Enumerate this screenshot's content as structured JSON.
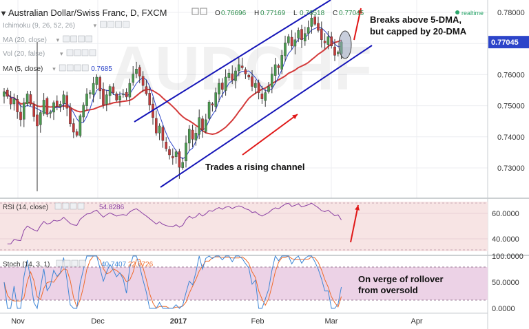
{
  "header": {
    "symbol": "Australian Dollar/Swiss Franc, D, FXCM",
    "ohlc": [
      {
        "key": "O",
        "value": "0.76696"
      },
      {
        "key": "H",
        "value": "0.77169"
      },
      {
        "key": "L",
        "value": "0.76518"
      },
      {
        "key": "C",
        "value": "0.77045"
      }
    ],
    "realtime": "realtime",
    "indicators": [
      {
        "label": "Ichimoku (9, 26, 52, 26)",
        "value": ""
      },
      {
        "label": "MA (20, close)",
        "value": ""
      },
      {
        "label": "Vol (20, false)",
        "value": ""
      },
      {
        "label": "MA (5, close)",
        "value": "0.7685"
      }
    ]
  },
  "annotations": {
    "breakout": [
      "Breaks above 5-DMA,",
      "but capped by 20-DMA"
    ],
    "channel": "Trades a rising channel",
    "rollover": [
      "On verge of rollover",
      "from oversold"
    ]
  },
  "colors": {
    "up": "#4a9a4f",
    "down": "#c23a3a",
    "ma20": "#d43a3a",
    "ma5": "#2c44c9",
    "channel": "#1515b8",
    "arrow": "#e01818",
    "rsi": "#8a3fa3",
    "stoch_k": "#3d86d6",
    "stoch_d": "#ee6a2a",
    "rsi_bg": "#f7e4e4",
    "stoch_bg": "#ecd2e6",
    "price_badge": "#2c44c9"
  },
  "chart_data": [
    {
      "type": "candlestick",
      "title": "Australian Dollar/Swiss Franc, D, FXCM",
      "ylim": [
        0.72,
        0.785
      ],
      "y_ticks": [
        "0.78000",
        "0.77000",
        "0.76000",
        "0.75000",
        "0.74000",
        "0.73000"
      ],
      "current_price": "0.77045",
      "x_ticks": [
        "Nov",
        "Dec",
        "2017",
        "Feb",
        "Mar",
        "Apr"
      ],
      "series": [
        {
          "name": "MA (20, close)",
          "kind": "line",
          "color": "#d43a3a"
        },
        {
          "name": "MA (5, close)",
          "kind": "line",
          "color": "#2c44c9",
          "last": 0.7685
        }
      ],
      "close": [
        0.7545,
        0.753,
        0.7505,
        0.7522,
        0.748,
        0.7455,
        0.751,
        0.7538,
        0.7505,
        0.7465,
        0.7435,
        0.7478,
        0.7518,
        0.7472,
        0.748,
        0.751,
        0.7498,
        0.7505,
        0.7535,
        0.7492,
        0.7442,
        0.7415,
        0.7405,
        0.7468,
        0.7502,
        0.7538,
        0.7542,
        0.7572,
        0.7592,
        0.7548,
        0.7502,
        0.7535,
        0.7562,
        0.7542,
        0.7518,
        0.7532,
        0.7538,
        0.7528,
        0.7572,
        0.7602,
        0.7618,
        0.7595,
        0.7565,
        0.7538,
        0.7502,
        0.7462,
        0.7412,
        0.7435,
        0.7388,
        0.7362,
        0.7342,
        0.7332,
        0.7352,
        0.7302,
        0.7318,
        0.738,
        0.7425,
        0.7392,
        0.7412,
        0.7462,
        0.7422,
        0.7455,
        0.7512,
        0.7502,
        0.7542,
        0.7572,
        0.7552,
        0.7592,
        0.7605,
        0.7582,
        0.7612,
        0.7632,
        0.7622,
        0.7602,
        0.7592,
        0.7562,
        0.7572,
        0.7542,
        0.7522,
        0.7542,
        0.7562,
        0.7602,
        0.7632,
        0.7622,
        0.7662,
        0.7702,
        0.7722,
        0.7692,
        0.7712,
        0.7742,
        0.7712,
        0.7732,
        0.7752,
        0.7782,
        0.7762,
        0.7742,
        0.7712,
        0.7702,
        0.7722,
        0.7692,
        0.7662,
        0.7672,
        0.7705
      ]
    },
    {
      "type": "line",
      "title": "RSI (14, close)",
      "ylim": [
        32,
        70
      ],
      "y_ticks": [
        "60.0000",
        "40.0000"
      ],
      "series": [
        {
          "name": "RSI (14, close)",
          "last": 54.8286
        }
      ]
    },
    {
      "type": "line",
      "title": "Stoch (14, 3, 1)",
      "ylim": [
        -2,
        100
      ],
      "y_ticks": [
        "100.0000",
        "50.0000",
        "0.0000"
      ],
      "series": [
        {
          "name": "%K",
          "last": 40.7407
        },
        {
          "name": "%D",
          "last": 22.6726
        }
      ]
    }
  ],
  "rsi": {
    "label": "RSI (14, close)",
    "value": "54.8286"
  },
  "stoch": {
    "label": "Stoch (14, 3, 1)",
    "k_value": "40.7407",
    "d_value": "22.6726"
  }
}
